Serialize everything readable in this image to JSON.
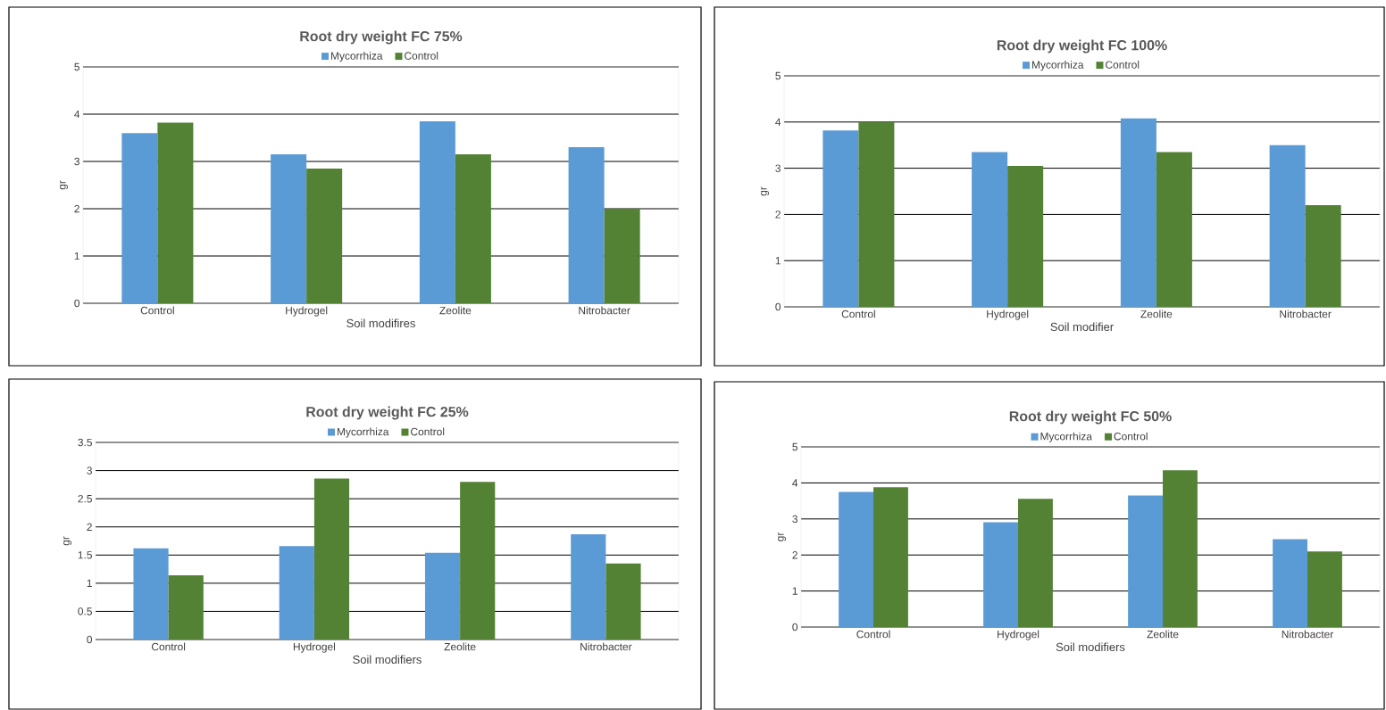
{
  "chart_data": [
    {
      "type": "bar",
      "title": "Root dry weight FC 75%",
      "xlabel": "Soil modifires",
      "ylabel": "gr",
      "categories": [
        "Control",
        "Hydrogel",
        "Zeolite",
        "Nitrobacter"
      ],
      "series": [
        {
          "name": "Mycorrhiza",
          "color": "#5b9bd5",
          "values": [
            3.6,
            3.15,
            3.85,
            3.3
          ]
        },
        {
          "name": "Control",
          "color": "#548235",
          "values": [
            3.82,
            2.85,
            3.15,
            2.0
          ]
        }
      ],
      "ylim": [
        0,
        5
      ],
      "yticks": [
        0,
        1,
        2,
        3,
        4,
        5
      ],
      "grid": "y",
      "legend": "top"
    },
    {
      "type": "bar",
      "title": "Root dry weight FC 100%",
      "xlabel": "Soil modifier",
      "ylabel": "gr",
      "categories": [
        "Control",
        "Hydrogel",
        "Zeolite",
        "Nitrobacter"
      ],
      "series": [
        {
          "name": "Mycorrhiza",
          "color": "#5b9bd5",
          "values": [
            3.82,
            3.35,
            4.08,
            3.5
          ]
        },
        {
          "name": "Control",
          "color": "#548235",
          "values": [
            4.0,
            3.05,
            3.35,
            2.2
          ]
        }
      ],
      "ylim": [
        0,
        5
      ],
      "yticks": [
        0,
        1,
        2,
        3,
        4,
        5
      ],
      "grid": "y",
      "legend": "top"
    },
    {
      "type": "bar",
      "title": "Root dry weight FC 25%",
      "xlabel": "Soil modifiers",
      "ylabel": "gr",
      "categories": [
        "Control",
        "Hydrogel",
        "Zeolite",
        "Nitrobacter"
      ],
      "series": [
        {
          "name": "Mycorrhiza",
          "color": "#5b9bd5",
          "values": [
            1.62,
            1.66,
            1.54,
            1.87
          ]
        },
        {
          "name": "Control",
          "color": "#548235",
          "values": [
            1.14,
            2.86,
            2.8,
            1.35
          ]
        }
      ],
      "ylim": [
        0,
        3.5
      ],
      "yticks": [
        0,
        0.5,
        1,
        1.5,
        2,
        2.5,
        3,
        3.5
      ],
      "grid": "y",
      "legend": "top"
    },
    {
      "type": "bar",
      "title": "Root dry weight FC 50%",
      "xlabel": "Soil modifiers",
      "ylabel": "gr",
      "categories": [
        "Control",
        "Hydrogel",
        "Zeolite",
        "Nitrobacter"
      ],
      "series": [
        {
          "name": "Mycorrhiza",
          "color": "#5b9bd5",
          "values": [
            3.75,
            2.91,
            3.65,
            2.44
          ]
        },
        {
          "name": "Control",
          "color": "#548235",
          "values": [
            3.88,
            3.56,
            4.35,
            2.1
          ]
        }
      ],
      "ylim": [
        0,
        5
      ],
      "yticks": [
        0,
        1,
        2,
        3,
        4,
        5
      ],
      "grid": "y",
      "legend": "top"
    }
  ]
}
